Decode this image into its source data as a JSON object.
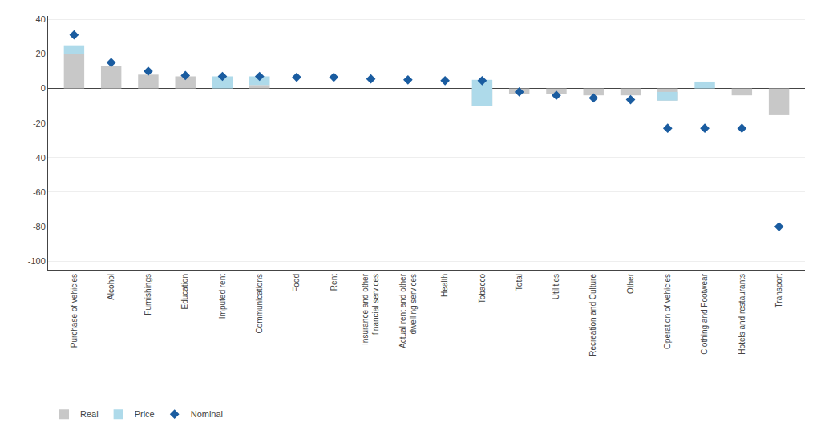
{
  "chart_data": {
    "type": "bar",
    "categories": [
      "Purchase of vehicles",
      "Alcohol",
      "Furnishings",
      "Education",
      "Imputed rent",
      "Communications",
      "Food",
      "Rent",
      "Insurance and other\nfinancial services",
      "Actual rent and other\ndwelling services",
      "Health",
      "Tobacco",
      "Total",
      "Utilities",
      "Recreation and Culture",
      "Other",
      "Operation of vehicles",
      "Clothing and Footwear",
      "Hotels and restaurants",
      "Transport"
    ],
    "series": [
      {
        "name": "Real",
        "type": "bar",
        "color": "#c8c8c8",
        "values": [
          20.0,
          13.0,
          8.0,
          7.0,
          0.0,
          2.0,
          0.0,
          0.0,
          0.0,
          0.0,
          0.0,
          -10.0,
          -3.0,
          -3.0,
          -4.0,
          -4.0,
          -7.0,
          0.0,
          -4.0,
          -15.0
        ]
      },
      {
        "name": "Price",
        "type": "bar",
        "color": "#aedaea",
        "values": [
          5.0,
          0.0,
          0.0,
          0.0,
          7.0,
          5.0,
          0.0,
          0.0,
          0.0,
          0.0,
          0.0,
          15.0,
          0.0,
          0.0,
          0.0,
          0.0,
          5.0,
          4.0,
          0.0,
          0.0
        ]
      },
      {
        "name": "Nominal",
        "type": "scatter",
        "marker": "diamond",
        "color": "#1a5ca0",
        "values": [
          31.0,
          15.0,
          10.0,
          7.5,
          7.0,
          7.0,
          6.5,
          6.5,
          5.5,
          5.0,
          4.5,
          4.5,
          -2.0,
          -4.0,
          -5.5,
          -6.5,
          -23.0,
          -23.0,
          -23.0,
          -80.0
        ]
      }
    ],
    "stacked": true,
    "ylim": [
      -105,
      42
    ],
    "yticks": [
      -100,
      -80,
      -60,
      -40,
      -20,
      0,
      20,
      40
    ],
    "grid": true,
    "legend": "lower left"
  }
}
